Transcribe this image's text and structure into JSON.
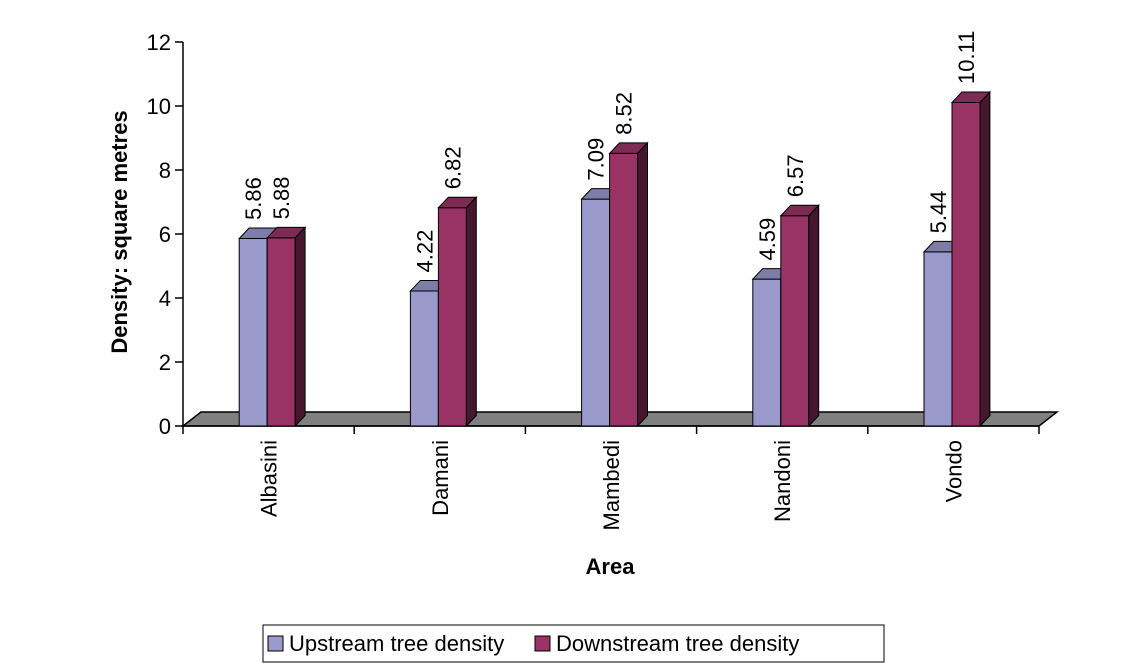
{
  "chart_data": {
    "type": "bar",
    "categories": [
      "Albasini",
      "Damani",
      "Mambedi",
      "Nandoni",
      "Vondo"
    ],
    "series": [
      {
        "name": "Upstream tree density",
        "values": [
          5.86,
          4.22,
          7.09,
          4.59,
          5.44
        ],
        "color": "#9999CC"
      },
      {
        "name": "Downstream tree density",
        "values": [
          5.88,
          6.82,
          8.52,
          6.57,
          10.11
        ],
        "color": "#993366"
      }
    ],
    "xlabel": "Area",
    "ylabel": "Density: square metres",
    "ylim": [
      0,
      12
    ],
    "yticks": [
      "0",
      "2",
      "4",
      "6",
      "8",
      "10",
      "12"
    ],
    "grid": false,
    "legend_position": "bottom",
    "three_d": true
  }
}
